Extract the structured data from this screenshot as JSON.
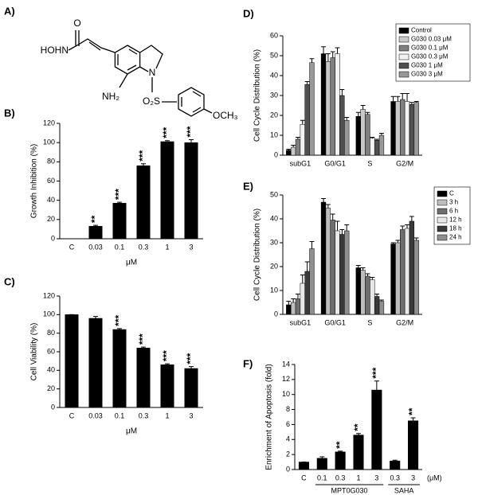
{
  "structure": {
    "label": "A)",
    "atoms": [
      "O",
      "HOHN",
      "N",
      "NH₂",
      "O₂S",
      "OCH₃"
    ]
  },
  "chart_data": [
    {
      "label": "B)",
      "type": "bar",
      "categories": [
        "C",
        "0.03",
        "0.1",
        "0.3",
        "1",
        "3"
      ],
      "values": [
        0,
        13,
        37,
        76,
        101,
        100
      ],
      "errors": [
        0,
        1,
        1,
        2,
        1,
        3
      ],
      "annotations": [
        null,
        "**",
        "***",
        "***",
        "***",
        "***"
      ],
      "xlabel": "μM",
      "ylabel": "Growth Inhibition (%)",
      "color": "#000000",
      "ylim": [
        0,
        120
      ],
      "yticks": [
        0,
        20,
        40,
        60,
        80,
        100,
        120
      ]
    },
    {
      "label": "C)",
      "type": "bar",
      "categories": [
        "C",
        "0.03",
        "0.1",
        "0.3",
        "1",
        "3"
      ],
      "values": [
        100,
        96,
        84,
        64,
        46,
        42
      ],
      "errors": [
        0,
        2,
        1,
        1,
        1,
        2
      ],
      "annotations": [
        null,
        null,
        "***",
        "***",
        "***",
        "***"
      ],
      "xlabel": "μM",
      "ylabel": "Cell Viability (%)",
      "color": "#000000",
      "ylim": [
        0,
        120
      ],
      "yticks": [
        0,
        20,
        40,
        60,
        80,
        100,
        120
      ]
    },
    {
      "label": "D)",
      "type": "bar",
      "categories": [
        "subG1",
        "G0/G1",
        "S",
        "G2/M"
      ],
      "ylabel": "Cell Cycle Distribution (%)",
      "ylim": [
        0,
        60
      ],
      "yticks": [
        0,
        10,
        20,
        30,
        40,
        50,
        60
      ],
      "legend": "upper right",
      "series": [
        {
          "name": "Control",
          "color": "#000000",
          "values": [
            2.5,
            51,
            19.5,
            27
          ],
          "errors": [
            0.5,
            3.5,
            2,
            2.5
          ]
        },
        {
          "name": "G030 0.03 μM",
          "color": "#c8c8c8",
          "values": [
            4,
            47,
            23,
            27
          ],
          "errors": [
            1,
            4,
            2,
            2.5
          ]
        },
        {
          "name": "G030 0.1 μM",
          "color": "#808080",
          "values": [
            8,
            49,
            20.5,
            28
          ],
          "errors": [
            1,
            3,
            1,
            3
          ]
        },
        {
          "name": "G030 0.3 μM",
          "color": "#f2f2f2",
          "values": [
            15.5,
            51,
            8.5,
            27
          ],
          "errors": [
            2,
            3,
            0.5,
            4
          ]
        },
        {
          "name": "G030 1 μM",
          "color": "#505050",
          "values": [
            35.5,
            30,
            7.5,
            25.5
          ],
          "errors": [
            1.5,
            3,
            0.5,
            1
          ]
        },
        {
          "name": "G030 3 μM",
          "color": "#999999",
          "values": [
            46.5,
            17.5,
            10,
            26.5
          ],
          "errors": [
            2,
            1.5,
            1,
            0.5
          ]
        }
      ]
    },
    {
      "label": "E)",
      "type": "bar",
      "categories": [
        "subG1",
        "G0/G1",
        "S",
        "G2/M"
      ],
      "ylabel": "Cell Cycle Distribution (%)",
      "ylim": [
        0,
        50
      ],
      "yticks": [
        0,
        10,
        20,
        30,
        40,
        50
      ],
      "legend": "right",
      "series": [
        {
          "name": "C",
          "color": "#000000",
          "values": [
            4,
            47,
            19.5,
            29.5
          ],
          "errors": [
            1.5,
            1.5,
            1,
            0.5
          ]
        },
        {
          "name": "3 h",
          "color": "#bdbdbd",
          "values": [
            5,
            44.5,
            18.5,
            30
          ],
          "errors": [
            1.5,
            1.5,
            1,
            1
          ]
        },
        {
          "name": "6 h",
          "color": "#6e6e6e",
          "values": [
            6.5,
            39.5,
            16,
            35.5
          ],
          "errors": [
            2,
            2.5,
            1,
            1.5
          ]
        },
        {
          "name": "12 h",
          "color": "#e8e8e8",
          "values": [
            13,
            35,
            14.5,
            36
          ],
          "errors": [
            3.5,
            4,
            1,
            1.5
          ]
        },
        {
          "name": "18 h",
          "color": "#3a3a3a",
          "values": [
            18,
            33.5,
            7.5,
            39
          ],
          "errors": [
            4,
            2,
            1,
            2
          ]
        },
        {
          "name": "24 h",
          "color": "#8f8f8f",
          "values": [
            27.5,
            35,
            5.5,
            31
          ],
          "errors": [
            3,
            2.5,
            0.5,
            1
          ]
        }
      ]
    },
    {
      "label": "F)",
      "type": "bar",
      "categories": [
        "C",
        "0.1",
        "0.3",
        "1",
        "3",
        "0.3",
        "3"
      ],
      "values": [
        1,
        1.5,
        2.35,
        4.6,
        10.6,
        1.15,
        6.5
      ],
      "errors": [
        0,
        0.2,
        0.1,
        0.2,
        1.2,
        0.1,
        0.4
      ],
      "annotations": [
        null,
        null,
        "**",
        "**",
        "***",
        null,
        "**"
      ],
      "groups": [
        "MPT0G030",
        "SAHA"
      ],
      "xlabel": "(μM)",
      "ylabel": "Enrichment of Apoptosis (fold)",
      "color": "#000000",
      "ylim": [
        0,
        14
      ],
      "yticks": [
        0,
        2,
        4,
        6,
        8,
        10,
        12,
        14
      ]
    }
  ]
}
